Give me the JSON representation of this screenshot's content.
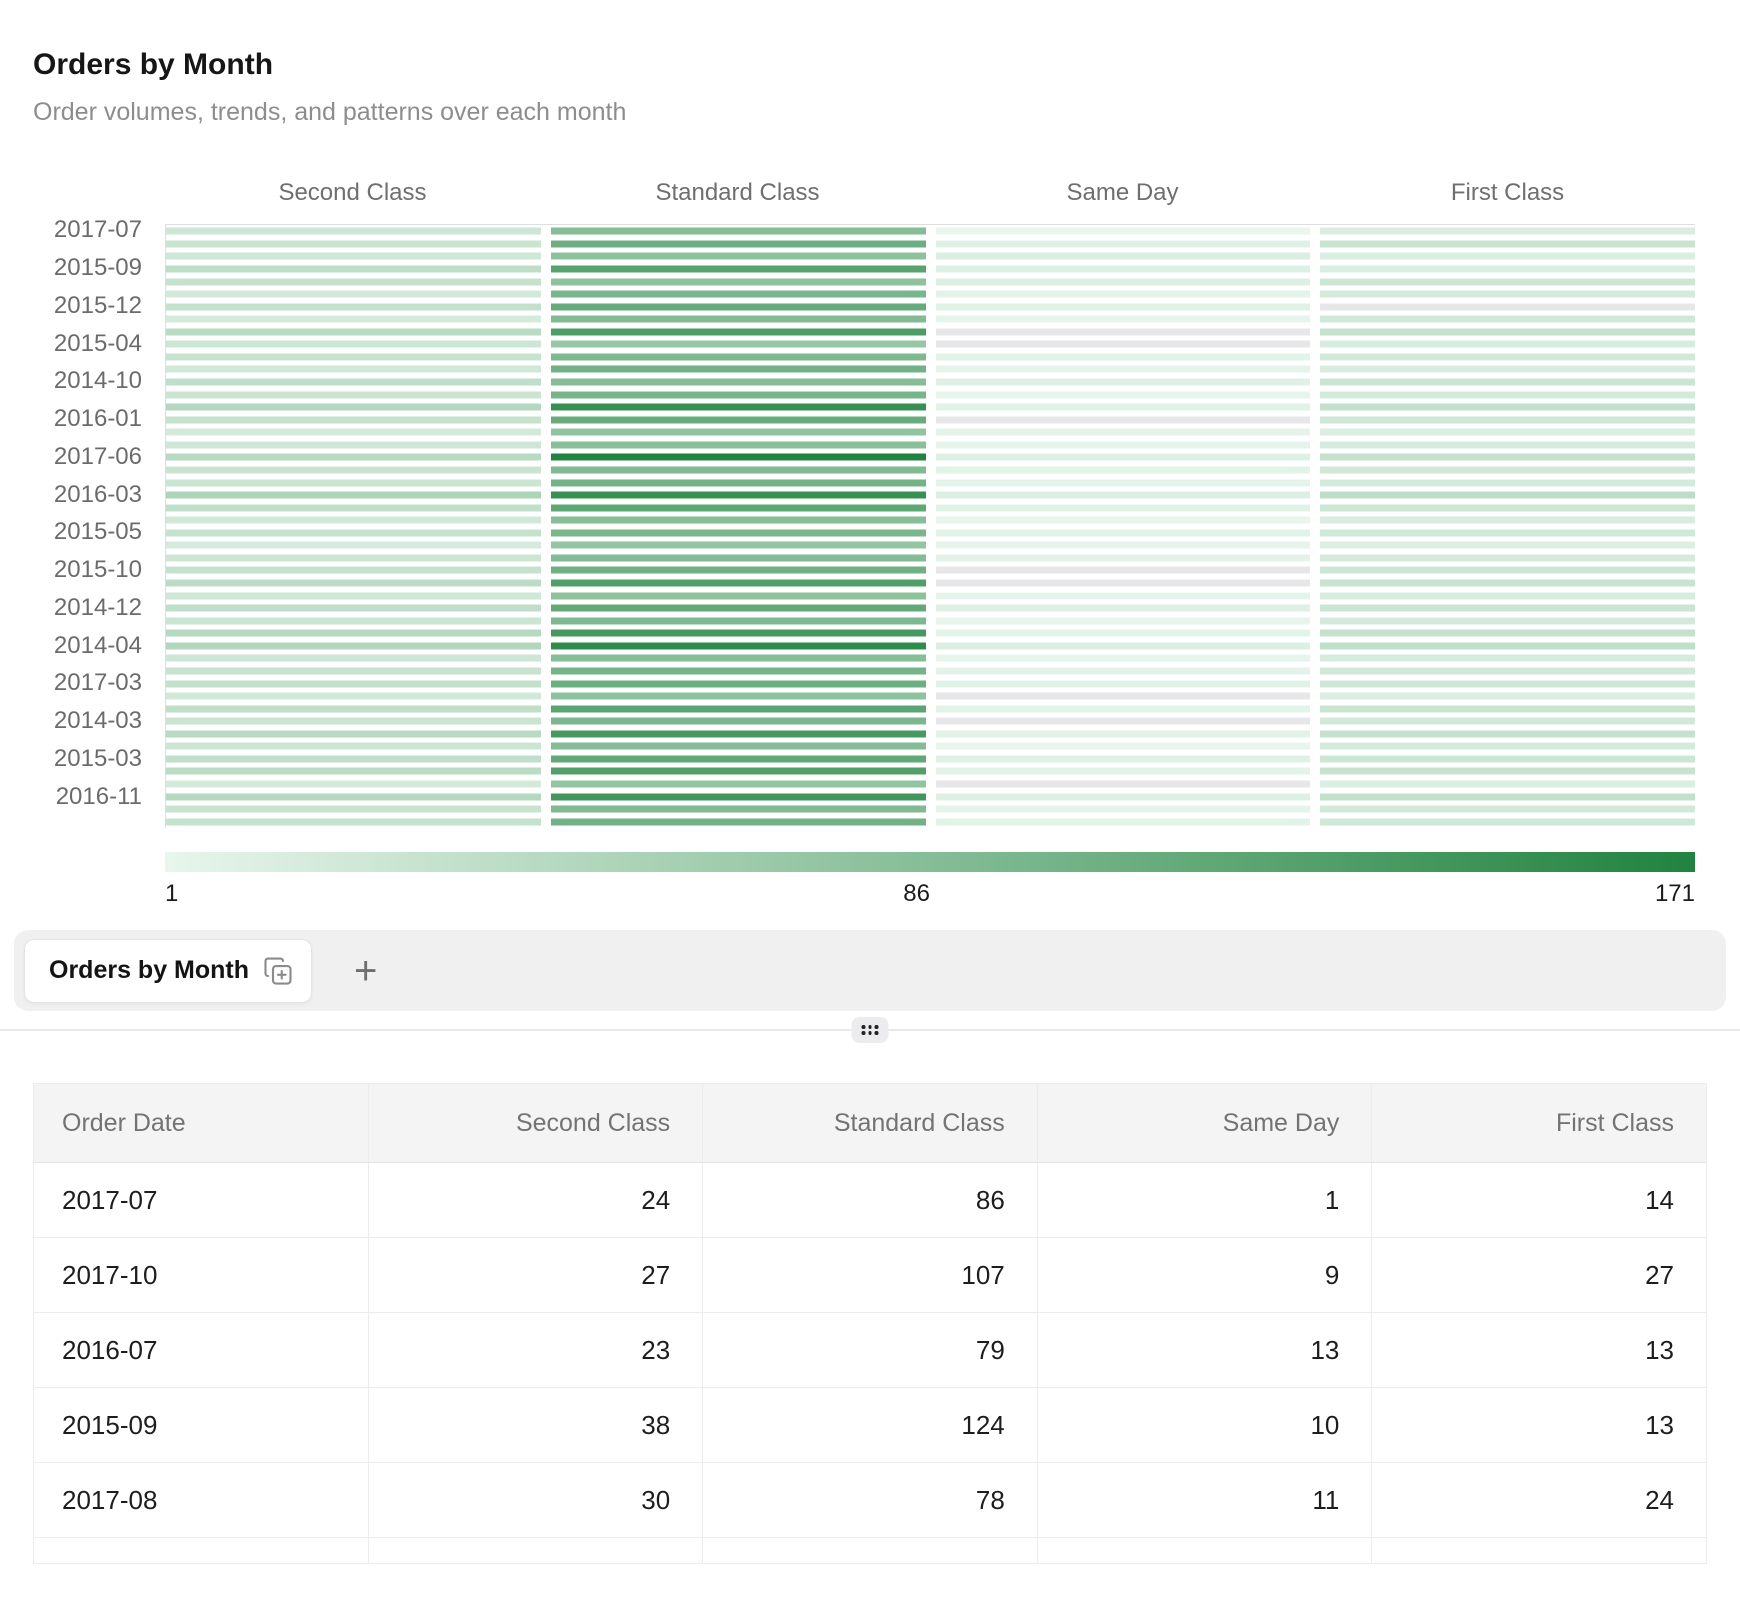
{
  "header": {
    "title": "Orders by Month",
    "subtitle": "Order volumes, trends, and patterns over each month"
  },
  "chart_data": {
    "type": "heatmap",
    "title": "Orders by Month",
    "columns": [
      "Second Class",
      "Standard Class",
      "Same Day",
      "First Class"
    ],
    "label_every_n_rows": 3,
    "rows": [
      {
        "label": "2017-07",
        "values": [
          24,
          86,
          1,
          14
        ]
      },
      {
        "label": "2017-10",
        "values": [
          27,
          107,
          9,
          27
        ]
      },
      {
        "label": "2016-07",
        "values": [
          23,
          79,
          13,
          13
        ]
      },
      {
        "label": "2015-09",
        "values": [
          38,
          124,
          10,
          13
        ]
      },
      {
        "label": "2017-08",
        "values": [
          30,
          78,
          11,
          24
        ]
      },
      {
        "label": "",
        "values": [
          20,
          95,
          5,
          18
        ]
      },
      {
        "label": "2015-12",
        "values": [
          33,
          112,
          8,
          null
        ]
      },
      {
        "label": "",
        "values": [
          18,
          88,
          3,
          22
        ]
      },
      {
        "label": "",
        "values": [
          41,
          134,
          null,
          30
        ]
      },
      {
        "label": "2015-04",
        "values": [
          25,
          71,
          null,
          16
        ]
      },
      {
        "label": "",
        "values": [
          29,
          92,
          6,
          20
        ]
      },
      {
        "label": "",
        "values": [
          22,
          103,
          4,
          15
        ]
      },
      {
        "label": "2014-10",
        "values": [
          35,
          85,
          9,
          26
        ]
      },
      {
        "label": "",
        "values": [
          27,
          98,
          2,
          19
        ]
      },
      {
        "label": "",
        "values": [
          46,
          152,
          7,
          33
        ]
      },
      {
        "label": "2016-01",
        "values": [
          31,
          110,
          null,
          23
        ]
      },
      {
        "label": "",
        "values": [
          19,
          76,
          5,
          14
        ]
      },
      {
        "label": "",
        "values": [
          24,
          82,
          3,
          17
        ]
      },
      {
        "label": "2017-06",
        "values": [
          43,
          171,
          10,
          31
        ]
      },
      {
        "label": "",
        "values": [
          28,
          90,
          6,
          21
        ]
      },
      {
        "label": "",
        "values": [
          26,
          100,
          4,
          18
        ]
      },
      {
        "label": "2016-03",
        "values": [
          52,
          152,
          12,
          38
        ]
      },
      {
        "label": "",
        "values": [
          34,
          118,
          8,
          25
        ]
      },
      {
        "label": "",
        "values": [
          21,
          84,
          2,
          15
        ]
      },
      {
        "label": "2015-05",
        "values": [
          30,
          96,
          7,
          22
        ]
      },
      {
        "label": "",
        "values": [
          17,
          73,
          3,
          12
        ]
      },
      {
        "label": "",
        "values": [
          25,
          88,
          5,
          18
        ]
      },
      {
        "label": "2015-10",
        "values": [
          32,
          104,
          null,
          24
        ]
      },
      {
        "label": "",
        "values": [
          39,
          131,
          null,
          28
        ]
      },
      {
        "label": "",
        "values": [
          23,
          80,
          4,
          16
        ]
      },
      {
        "label": "2014-12",
        "values": [
          36,
          115,
          9,
          26
        ]
      },
      {
        "label": "",
        "values": [
          26,
          92,
          2,
          19
        ]
      },
      {
        "label": "",
        "values": [
          44,
          140,
          6,
          32
        ]
      },
      {
        "label": "2014-04",
        "values": [
          48,
          158,
          11,
          35
        ]
      },
      {
        "label": "",
        "values": [
          24,
          86,
          3,
          17
        ]
      },
      {
        "label": "",
        "values": [
          29,
          99,
          5,
          21
        ]
      },
      {
        "label": "2017-03",
        "values": [
          33,
          108,
          8,
          24
        ]
      },
      {
        "label": "",
        "values": [
          20,
          78,
          null,
          14
        ]
      },
      {
        "label": "",
        "values": [
          37,
          122,
          6,
          27
        ]
      },
      {
        "label": "2014-03",
        "values": [
          27,
          94,
          null,
          20
        ]
      },
      {
        "label": "",
        "values": [
          42,
          138,
          7,
          30
        ]
      },
      {
        "label": "",
        "values": [
          25,
          87,
          2,
          18
        ]
      },
      {
        "label": "2015-03",
        "values": [
          35,
          116,
          9,
          25
        ]
      },
      {
        "label": "",
        "values": [
          40,
          129,
          5,
          29
        ]
      },
      {
        "label": "",
        "values": [
          19,
          75,
          null,
          13
        ]
      },
      {
        "label": "2016-11",
        "values": [
          45,
          143,
          10,
          33
        ]
      },
      {
        "label": "",
        "values": [
          28,
          90,
          4,
          20
        ]
      },
      {
        "label": "",
        "values": [
          31,
          101,
          6,
          22
        ]
      }
    ],
    "color_scale": {
      "min": 1,
      "max": 171,
      "min_color": "#e8f6ed",
      "max_color": "#21833f",
      "null_color": "#e7e7e9"
    },
    "legend": {
      "min_label": "1",
      "mid_label": "86",
      "max_label": "171"
    }
  },
  "tabs": {
    "active_tab": "Orders by Month",
    "add_button": "+"
  },
  "table": {
    "headers": [
      "Order Date",
      "Second Class",
      "Standard Class",
      "Same Day",
      "First Class"
    ],
    "rows": [
      [
        "2017-07",
        "24",
        "86",
        "1",
        "14"
      ],
      [
        "2017-10",
        "27",
        "107",
        "9",
        "27"
      ],
      [
        "2016-07",
        "23",
        "79",
        "13",
        "13"
      ],
      [
        "2015-09",
        "38",
        "124",
        "10",
        "13"
      ],
      [
        "2017-08",
        "30",
        "78",
        "11",
        "24"
      ]
    ]
  }
}
